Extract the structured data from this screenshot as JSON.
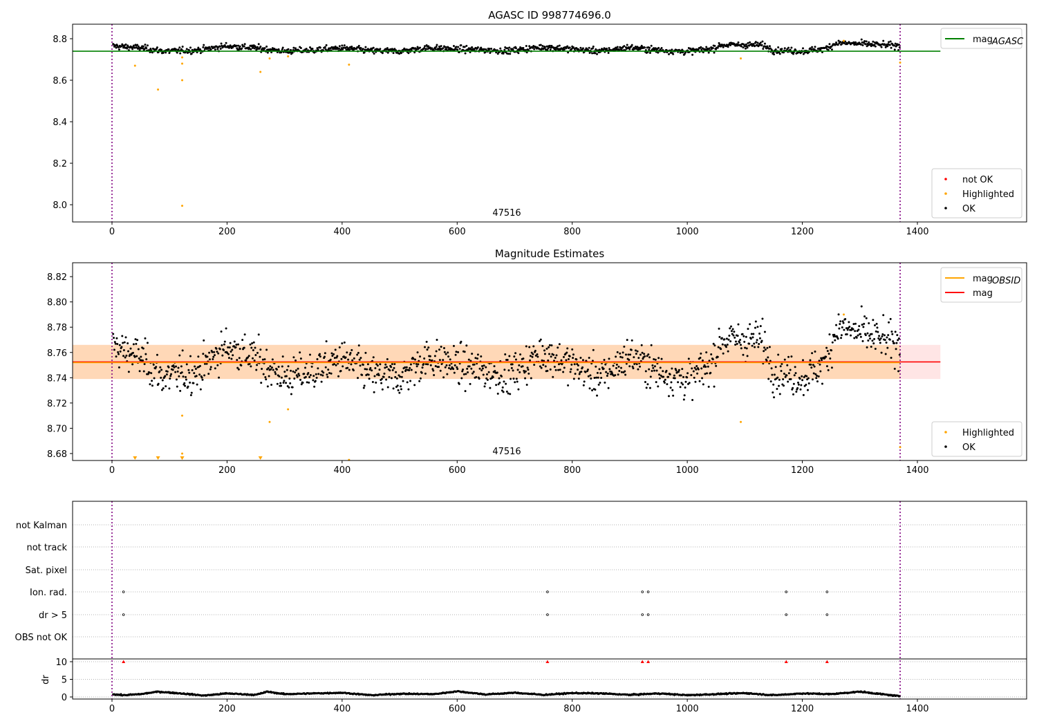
{
  "chart_data": [
    {
      "type": "scatter",
      "title": "AGASC ID 998774696.0",
      "xlim": [
        -68,
        1590
      ],
      "ylim": [
        7.917,
        8.87
      ],
      "xticks": [
        "0",
        "200",
        "400",
        "600",
        "800",
        "1000",
        "1200",
        "1400"
      ],
      "yticks": [
        "8.0",
        "8.2",
        "8.4",
        "8.6",
        "8.8"
      ],
      "ytick_values": [
        8.0,
        8.2,
        8.4,
        8.6,
        8.8
      ],
      "annotation": {
        "text": "47516",
        "x": 686
      },
      "mag_agasc": 8.74,
      "reference_line_xrange": [
        -68,
        1440
      ],
      "legend_top": [
        {
          "label": "mag",
          "sub": "AGASC",
          "color": "#008000"
        }
      ],
      "legend_bottom": [
        {
          "label": "not OK",
          "color": "#ff0000"
        },
        {
          "label": "Highlighted",
          "color": "#ffa500"
        },
        {
          "label": "OK",
          "color": "#000000"
        }
      ]
    },
    {
      "type": "scatter",
      "title": "Magnitude Estimates",
      "xlim": [
        -68,
        1590
      ],
      "ylim": [
        8.6745,
        8.831
      ],
      "xticks": [
        "0",
        "200",
        "400",
        "600",
        "800",
        "1000",
        "1200",
        "1400"
      ],
      "yticks": [
        "8.68",
        "8.70",
        "8.72",
        "8.74",
        "8.76",
        "8.78",
        "8.80",
        "8.82"
      ],
      "ytick_values": [
        8.68,
        8.7,
        8.72,
        8.74,
        8.76,
        8.78,
        8.8,
        8.82
      ],
      "annotation": {
        "text": "47516",
        "x": 686
      },
      "mag": 8.7525,
      "mag_band": [
        8.739,
        8.766
      ],
      "legend_top": [
        {
          "label": "mag",
          "sub": "OBSID",
          "color": "#ffa500"
        },
        {
          "label": "mag",
          "sub": "",
          "color": "#ff0000"
        }
      ],
      "legend_bottom": [
        {
          "label": "Highlighted",
          "color": "#ffa500"
        },
        {
          "label": "OK",
          "color": "#000000"
        }
      ]
    },
    {
      "type": "scatter",
      "title": "",
      "categories": [
        "not Kalman",
        "not track",
        "Sat. pixel",
        "Ion. rad.",
        "dr > 5",
        "OBS not OK"
      ],
      "flag_times": [
        20,
        757,
        922,
        932,
        1172,
        1243
      ],
      "flagged_categories": [
        "Ion. rad.",
        "dr > 5"
      ],
      "dr_label": "dr",
      "dr_yticks": [
        "0",
        "5",
        "10"
      ],
      "dr_ytick_values": [
        0,
        5,
        10
      ],
      "dr_ylim": [
        -0.5,
        10.5
      ],
      "dr_outliers_value": 10,
      "dr_profile": [
        [
          0,
          0.8
        ],
        [
          20,
          0.5
        ],
        [
          50,
          0.8
        ],
        [
          80,
          1.5
        ],
        [
          120,
          1.0
        ],
        [
          160,
          0.4
        ],
        [
          200,
          1.0
        ],
        [
          250,
          0.6
        ],
        [
          270,
          1.5
        ],
        [
          300,
          0.8
        ],
        [
          350,
          1.0
        ],
        [
          400,
          1.2
        ],
        [
          450,
          0.5
        ],
        [
          500,
          0.9
        ],
        [
          560,
          0.8
        ],
        [
          600,
          1.6
        ],
        [
          650,
          0.7
        ],
        [
          700,
          1.2
        ],
        [
          750,
          0.6
        ],
        [
          800,
          1.1
        ],
        [
          850,
          1.0
        ],
        [
          900,
          0.6
        ],
        [
          950,
          1.0
        ],
        [
          1000,
          0.5
        ],
        [
          1050,
          0.8
        ],
        [
          1100,
          1.1
        ],
        [
          1150,
          0.5
        ],
        [
          1200,
          1.0
        ],
        [
          1250,
          0.8
        ],
        [
          1300,
          1.5
        ],
        [
          1370,
          0.2
        ]
      ]
    }
  ],
  "shared": {
    "obs_start": 0,
    "obs_end": 1370,
    "mag_profile": [
      [
        0,
        8.765
      ],
      [
        50,
        8.756
      ],
      [
        90,
        8.74
      ],
      [
        150,
        8.745
      ],
      [
        200,
        8.765
      ],
      [
        250,
        8.755
      ],
      [
        300,
        8.74
      ],
      [
        350,
        8.745
      ],
      [
        400,
        8.755
      ],
      [
        450,
        8.742
      ],
      [
        500,
        8.74
      ],
      [
        550,
        8.756
      ],
      [
        600,
        8.75
      ],
      [
        650,
        8.745
      ],
      [
        690,
        8.742
      ],
      [
        750,
        8.76
      ],
      [
        800,
        8.75
      ],
      [
        850,
        8.74
      ],
      [
        900,
        8.758
      ],
      [
        950,
        8.745
      ],
      [
        1000,
        8.738
      ],
      [
        1040,
        8.75
      ],
      [
        1060,
        8.77
      ],
      [
        1130,
        8.77
      ],
      [
        1150,
        8.745
      ],
      [
        1200,
        8.74
      ],
      [
        1240,
        8.752
      ],
      [
        1260,
        8.78
      ],
      [
        1320,
        8.773
      ],
      [
        1370,
        8.765
      ]
    ],
    "highlighted": [
      [
        40,
        8.67
      ],
      [
        80,
        8.555
      ],
      [
        122,
        8.71
      ],
      [
        122,
        8.6
      ],
      [
        122,
        8.68
      ],
      [
        122,
        7.995
      ],
      [
        258,
        8.64
      ],
      [
        274,
        8.705
      ],
      [
        306,
        8.715
      ],
      [
        412,
        8.675
      ],
      [
        1093,
        8.705
      ],
      [
        1272,
        8.79
      ],
      [
        1370,
        8.685
      ]
    ]
  }
}
